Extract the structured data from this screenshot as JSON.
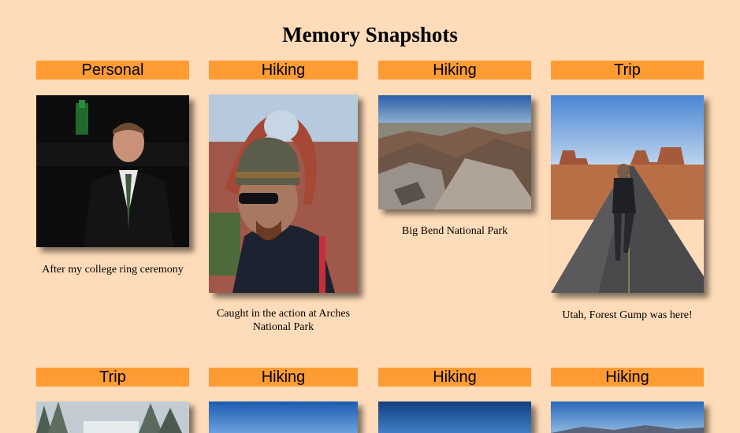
{
  "page": {
    "title": "Memory Snapshots"
  },
  "cards": [
    {
      "category": "Personal",
      "caption": "After my college ring ceremony",
      "photo": "man-in-suit-at-night-photo"
    },
    {
      "category": "Hiking",
      "caption": "Caught in the action at Arches National Park",
      "photo": "hiker-under-rock-arch-photo"
    },
    {
      "category": "Hiking",
      "caption": "Big Bend National Park",
      "photo": "desert-mountain-vista-photo"
    },
    {
      "category": "Trip",
      "caption": "Utah, Forest Gump was here!",
      "photo": "runner-on-desert-road-photo"
    },
    {
      "category": "Trip",
      "caption": "",
      "photo": "snowy-forest-photo"
    },
    {
      "category": "Hiking",
      "caption": "",
      "photo": "blue-sky-photo"
    },
    {
      "category": "Hiking",
      "caption": "",
      "photo": "blue-sky-photo"
    },
    {
      "category": "Hiking",
      "caption": "",
      "photo": "blue-sky-photo"
    }
  ],
  "colors": {
    "background": "#ffdcb9",
    "category_bar": "#ff9b33"
  }
}
